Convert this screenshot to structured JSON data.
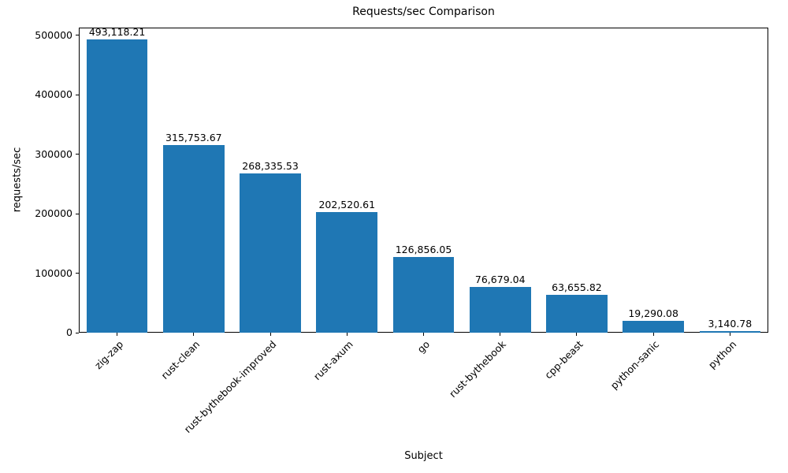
{
  "chart_data": {
    "type": "bar",
    "title": "Requests/sec Comparison",
    "xlabel": "Subject",
    "ylabel": "requests/sec",
    "categories": [
      "zig-zap",
      "rust-clean",
      "rust-bythebook-improved",
      "rust-axum",
      "go",
      "rust-bythebook",
      "cpp-beast",
      "python-sanic",
      "python"
    ],
    "values": [
      493118.21,
      315753.67,
      268335.53,
      202520.61,
      126856.05,
      76679.04,
      63655.82,
      19290.08,
      3140.78
    ],
    "value_labels": [
      "493,118.21",
      "315,753.67",
      "268,335.53",
      "202,520.61",
      "126,856.05",
      "76,679.04",
      "63,655.82",
      "19,290.08",
      "3,140.78"
    ],
    "yticks": [
      0,
      100000,
      200000,
      300000,
      400000,
      500000
    ],
    "ytick_labels": [
      "0",
      "100000",
      "200000",
      "300000",
      "400000",
      "500000"
    ],
    "ylim": [
      0,
      513000
    ],
    "bar_color": "#1f77b4",
    "background": "#ffffff",
    "grid": false,
    "legend": false
  }
}
